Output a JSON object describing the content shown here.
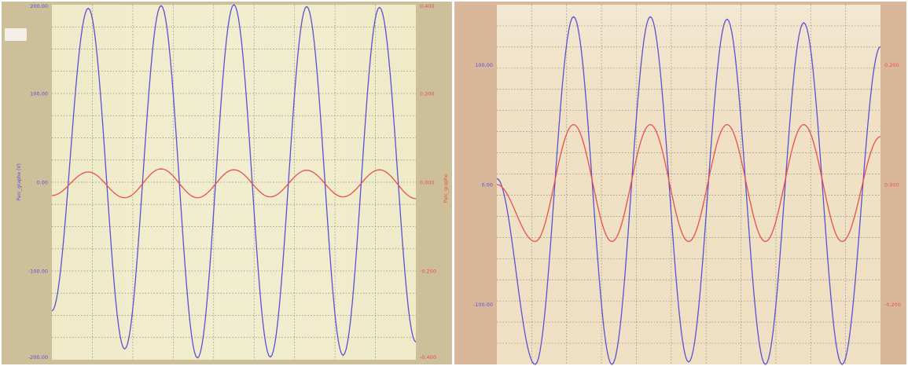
{
  "chart_data": [
    {
      "type": "line",
      "title": "",
      "x": [
        0,
        0.5,
        1,
        1.5,
        2,
        2.5,
        3,
        3.5,
        4,
        4.5,
        5
      ],
      "xlabel": "",
      "ylabel": "Parc_graphe (V)",
      "ylabel_right": "Parc_graphe",
      "ylim": [
        -200,
        200
      ],
      "ylim_right": [
        -0.4,
        0.4
      ],
      "yticks": [
        "200.00",
        "100.00",
        "0.00",
        "-100.00",
        "-200.00"
      ],
      "yticks_right": [
        "0.400",
        "0.200",
        "0.000",
        "-0.200",
        "-0.400"
      ],
      "grid": true,
      "series": [
        {
          "axis": "left",
          "color": "#5a50d6",
          "values": [
            -145,
            196,
            -188,
            199,
            -198,
            200,
            -197,
            198,
            -195,
            197,
            -180
          ]
        },
        {
          "axis": "right",
          "color": "#e8504a",
          "values": [
            -0.03,
            0.023,
            -0.035,
            0.03,
            -0.035,
            0.028,
            -0.033,
            0.027,
            -0.033,
            0.028,
            -0.037
          ]
        }
      ]
    },
    {
      "type": "line",
      "title": "",
      "x": [
        0,
        0.5,
        1,
        1.5,
        2,
        2.5,
        3,
        3.5,
        4,
        4.5,
        5
      ],
      "xlabel": "",
      "ylabel": "",
      "ylim": [
        -150,
        150
      ],
      "ylim_right": [
        -0.3,
        0.3
      ],
      "yticks": [
        "100.00",
        "0.00",
        "-100.00"
      ],
      "yticks_right": [
        "0.200",
        "0.000",
        "-0.200"
      ],
      "grid": true,
      "series": [
        {
          "axis": "left",
          "color": "#5a50d6",
          "values": [
            5,
            -150,
            140,
            -150,
            140,
            -148,
            138,
            -150,
            135,
            -150,
            115
          ]
        },
        {
          "axis": "right",
          "color": "#e8504a",
          "values": [
            0,
            -0.095,
            0.1,
            -0.095,
            0.1,
            -0.095,
            0.1,
            -0.095,
            0.1,
            -0.095,
            0.08
          ]
        }
      ]
    }
  ],
  "colors": {
    "panel_bg": "#efebc9",
    "frame_left": "#cdbf9a",
    "frame_right": "#d9b79a",
    "grid": "#8a8a78",
    "left_axis_text": "#5a50d6",
    "right_axis_text": "#e8504a"
  }
}
